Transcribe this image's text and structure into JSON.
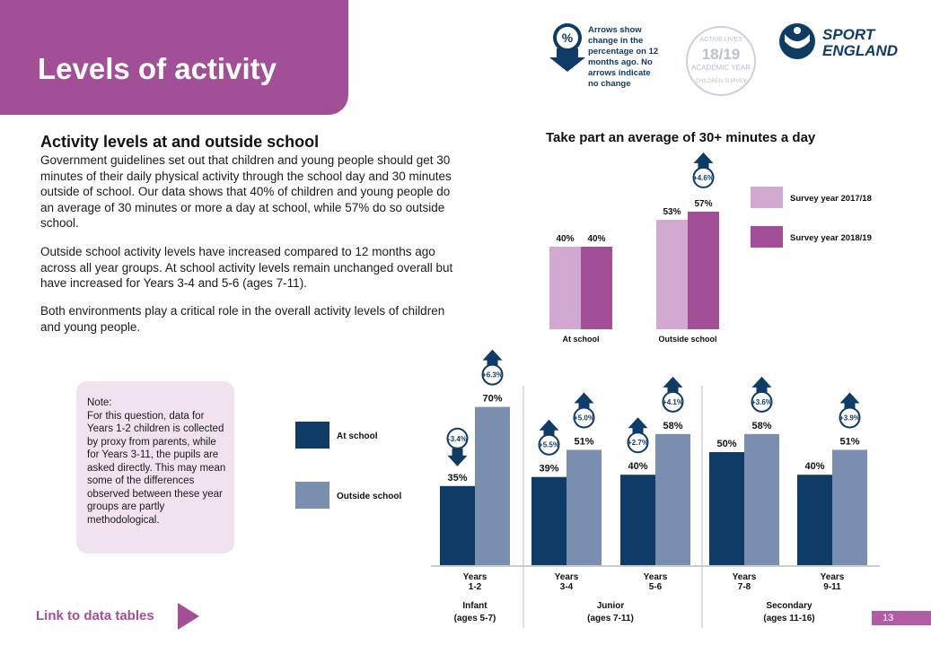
{
  "header": {
    "title": "Levels of activity",
    "arrow_legend_text": "Arrows show change in the percentage on 12 months ago. No arrows indicate no change",
    "arrow_legend_symbol": "%",
    "badge": {
      "line1": "ACTIVE LIVES",
      "line2": "18/19",
      "line3": "ACADEMIC YEAR",
      "line4": "CHILDREN SURVEY"
    },
    "logo": {
      "line1": "SPORT",
      "line2": "ENGLAND"
    }
  },
  "body": {
    "heading": "Activity levels at and outside school",
    "para1": "Government guidelines set out that children and young people should get 30 minutes of their daily physical activity through the school day and 30 minutes outside of school. Our data shows that 40% of children and young people do an average of 30 minutes or more a day at school, while 57% do so outside school.",
    "para2": "Outside school activity levels have increased compared to 12 months ago across all year groups. At school activity levels remain unchanged overall but have increased for Years 3-4 and 5-6 (ages 7-11).",
    "para3": "Both environments play a critical role in the overall activity levels of children and young people.",
    "note": "Note:\nFor this question, data for Years 1-2 children is collected by proxy from parents, while for Years 3-11, the pupils are asked directly. This may mean some of the differences observed between these year groups are partly methodological."
  },
  "footer": {
    "link": "Link to data tables",
    "page_number": "13"
  },
  "colors": {
    "purple": "#a24f98",
    "light_purple": "#d1a8cf",
    "navy": "#0f3b67",
    "steel": "#7a8fb0"
  },
  "chart_data": [
    {
      "type": "bar",
      "title": "Take part an average of 30+ minutes a day",
      "categories": [
        "At school",
        "Outside school"
      ],
      "series": [
        {
          "name": "Survey year 2017/18",
          "values": [
            40,
            53
          ],
          "labels": [
            "40%",
            "53%"
          ]
        },
        {
          "name": "Survey year 2018/19",
          "values": [
            40,
            57
          ],
          "labels": [
            "40%",
            "57%"
          ]
        }
      ],
      "changes": [
        null,
        {
          "direction": "up",
          "label": "+4.6%"
        }
      ],
      "ylim": [
        0,
        100
      ],
      "legend": "right"
    },
    {
      "type": "bar",
      "categories": [
        "Years 1-2",
        "Years 3-4",
        "Years 5-6",
        "Years 7-8",
        "Years 9-11"
      ],
      "groups": [
        {
          "label": "Infant",
          "sub": "(ages 5-7)"
        },
        {
          "label": "Junior",
          "sub": "(ages 7-11)"
        },
        {
          "label": "Secondary",
          "sub": "(ages 11-16)"
        }
      ],
      "series": [
        {
          "name": "At school",
          "values": [
            35,
            39,
            40,
            50,
            40
          ],
          "labels": [
            "35%",
            "39%",
            "40%",
            "50%",
            "40%"
          ],
          "changes": [
            {
              "direction": "down",
              "label": "-3.4%"
            },
            {
              "direction": "up",
              "label": "+5.5%"
            },
            {
              "direction": "up",
              "label": "+2.7%"
            },
            null,
            null
          ]
        },
        {
          "name": "Outside school",
          "values": [
            70,
            51,
            58,
            58,
            51
          ],
          "labels": [
            "70%",
            "51%",
            "58%",
            "58%",
            "51%"
          ],
          "changes": [
            {
              "direction": "up",
              "label": "+6.3%"
            },
            {
              "direction": "up",
              "label": "+5.0%"
            },
            {
              "direction": "up",
              "label": "+4.1%"
            },
            {
              "direction": "up",
              "label": "+3.6%"
            },
            {
              "direction": "up",
              "label": "+3.9%"
            }
          ]
        }
      ],
      "ylim": [
        0,
        100
      ],
      "legend": "left"
    }
  ]
}
